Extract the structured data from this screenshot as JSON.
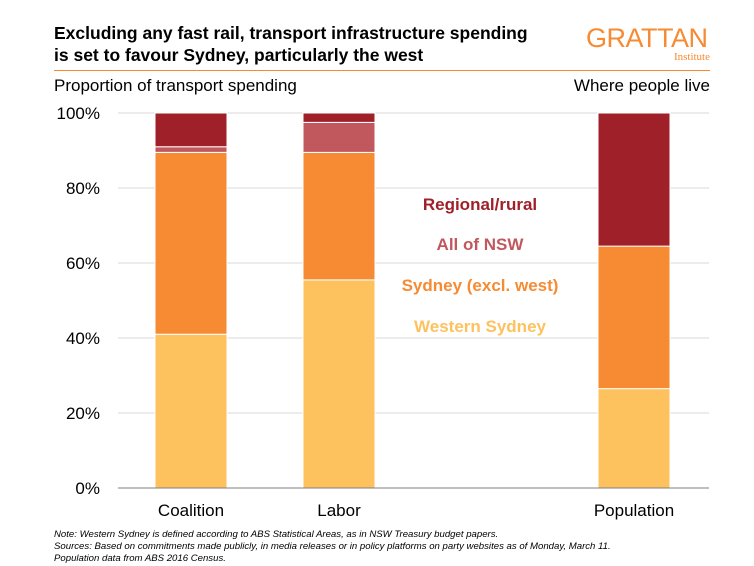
{
  "header": {
    "title_line1": "Excluding any fast rail, transport infrastructure spending",
    "title_line2": "is set to favour Sydney, particularly the west",
    "logo_text": "GRATTAN",
    "logo_subtext": "Institute",
    "subtitle_left": "Proportion of transport spending",
    "subtitle_right": "Where people live"
  },
  "colors": {
    "accent": "#F68B33",
    "regional_rural": "#A0202A",
    "all_of_nsw": "#C0585E",
    "sydney_excl_west": "#F68B33",
    "western_sydney": "#FDC25E"
  },
  "chart_data": {
    "type": "bar",
    "stacked": true,
    "categories": [
      "Coalition",
      "Labor",
      "Population"
    ],
    "series": [
      {
        "name": "Western Sydney",
        "values": [
          41,
          55.5,
          26.5
        ]
      },
      {
        "name": "Sydney (excl. west)",
        "values": [
          48.5,
          34,
          38
        ]
      },
      {
        "name": "All of NSW",
        "values": [
          1.5,
          8,
          0
        ]
      },
      {
        "name": "Regional/rural",
        "values": [
          9,
          2.5,
          35.5
        ]
      }
    ],
    "ylim": [
      0,
      100
    ],
    "yticks": [
      "0%",
      "20%",
      "40%",
      "60%",
      "80%",
      "100%"
    ],
    "ytick_values": [
      0,
      20,
      40,
      60,
      80,
      100
    ],
    "grid": true,
    "legend_position": "center-inline",
    "legend_order": [
      "Regional/rural",
      "All of NSW",
      "Sydney (excl. west)",
      "Western Sydney"
    ]
  },
  "notes": {
    "line1": "Note: Western Sydney is defined according to ABS Statistical Areas, as in NSW Treasury budget papers.",
    "line2": "Sources: Based on commitments made publicly, in media releases or in policy platforms on party websites as of Monday, March 11.",
    "line3": "Population data from ABS 2016 Census."
  }
}
